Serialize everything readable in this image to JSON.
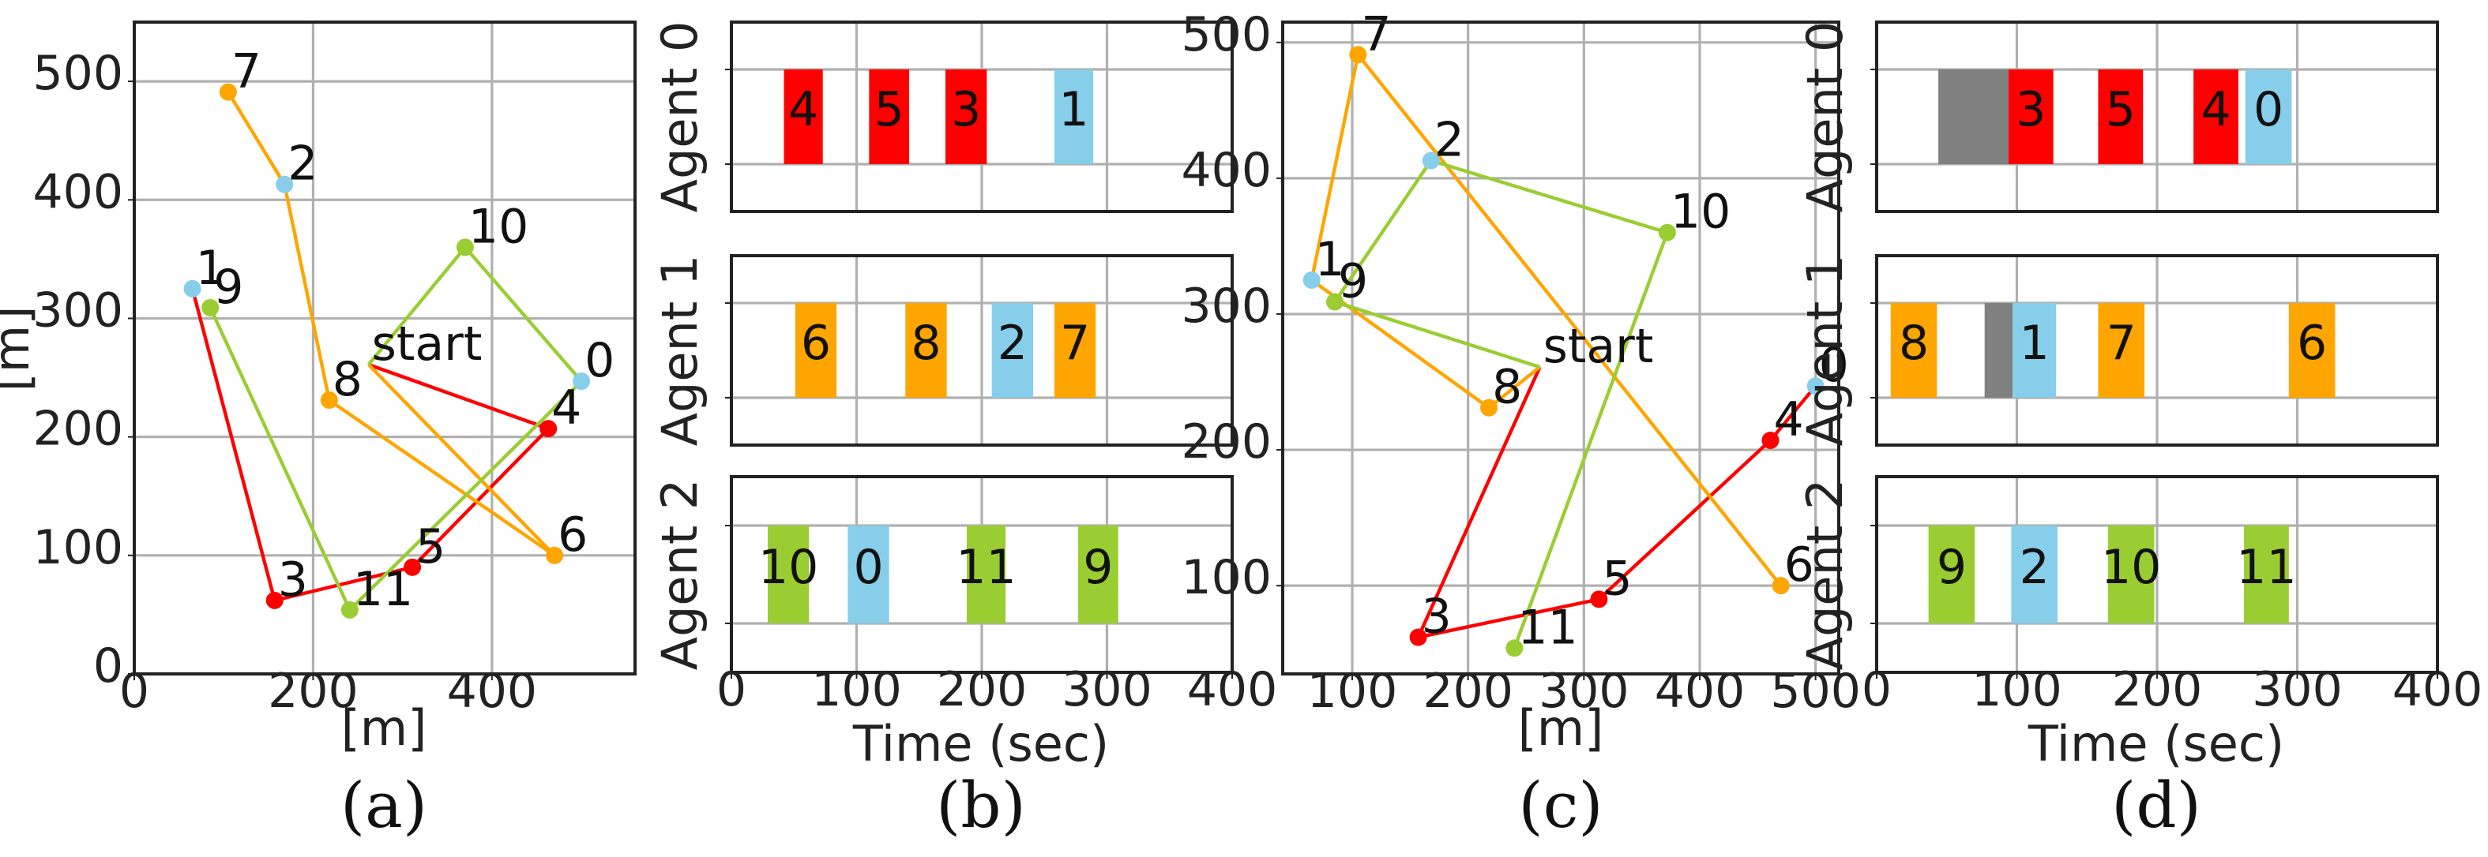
{
  "colors": {
    "agent0": "#ff0000",
    "agent1": "#ffa500",
    "agent2": "#9acd32",
    "depot": "#87ceeb",
    "wait": "#808080"
  },
  "chart_data": [
    {
      "id": "a",
      "type": "scatter",
      "caption": "(a)",
      "xlabel": "[m]",
      "ylabel": "[m]",
      "xlim": [
        0,
        560
      ],
      "ylim": [
        0,
        550
      ],
      "xticks": [
        0,
        200,
        400
      ],
      "yticks": [
        0,
        100,
        200,
        300,
        400,
        500
      ],
      "grid": true,
      "points": [
        {
          "label": "0",
          "x": 500,
          "y": 247,
          "color": "depot"
        },
        {
          "label": "1",
          "x": 65,
          "y": 325,
          "color": "depot"
        },
        {
          "label": "2",
          "x": 168,
          "y": 413,
          "color": "depot"
        },
        {
          "label": "3",
          "x": 157,
          "y": 62,
          "color": "agent0"
        },
        {
          "label": "4",
          "x": 463,
          "y": 207,
          "color": "agent0"
        },
        {
          "label": "5",
          "x": 311,
          "y": 90,
          "color": "agent0"
        },
        {
          "label": "6",
          "x": 470,
          "y": 100,
          "color": "agent1"
        },
        {
          "label": "7",
          "x": 105,
          "y": 491,
          "color": "agent1"
        },
        {
          "label": "8",
          "x": 218,
          "y": 231,
          "color": "agent1"
        },
        {
          "label": "9",
          "x": 85,
          "y": 309,
          "color": "agent2"
        },
        {
          "label": "10",
          "x": 370,
          "y": 360,
          "color": "agent2"
        },
        {
          "label": "11",
          "x": 241,
          "y": 54,
          "color": "agent2"
        },
        {
          "label": "start",
          "x": 262,
          "y": 261,
          "color": "agent2"
        }
      ],
      "routes": [
        {
          "color": "agent0",
          "path": [
            "start",
            "4",
            "5",
            "3",
            "1"
          ]
        },
        {
          "color": "agent1",
          "path": [
            "start",
            "6",
            "8",
            "2",
            "7"
          ]
        },
        {
          "color": "agent2",
          "path": [
            "start",
            "10",
            "0",
            "11",
            "9"
          ]
        }
      ]
    },
    {
      "id": "b",
      "type": "bar",
      "caption": "(b)",
      "xlabel": "Time (sec)",
      "xlim": [
        0,
        400
      ],
      "xticks": [
        0,
        100,
        200,
        300,
        400
      ],
      "grid": true,
      "agents": [
        {
          "name": "Agent 0",
          "tasks": [
            {
              "label": "4",
              "start": 42,
              "end": 73,
              "color": "agent0"
            },
            {
              "label": "5",
              "start": 110,
              "end": 142,
              "color": "agent0"
            },
            {
              "label": "3",
              "start": 171,
              "end": 204,
              "color": "agent0"
            },
            {
              "label": "1",
              "start": 258,
              "end": 289,
              "color": "depot"
            }
          ]
        },
        {
          "name": "Agent 1",
          "tasks": [
            {
              "label": "6",
              "start": 51,
              "end": 84,
              "color": "agent1"
            },
            {
              "label": "8",
              "start": 139,
              "end": 172,
              "color": "agent1"
            },
            {
              "label": "2",
              "start": 208,
              "end": 241,
              "color": "depot"
            },
            {
              "label": "7",
              "start": 258,
              "end": 291,
              "color": "agent1"
            }
          ]
        },
        {
          "name": "Agent 2",
          "tasks": [
            {
              "label": "10",
              "start": 29,
              "end": 62,
              "color": "agent2"
            },
            {
              "label": "0",
              "start": 93,
              "end": 126,
              "color": "depot"
            },
            {
              "label": "11",
              "start": 188,
              "end": 219,
              "color": "agent2"
            },
            {
              "label": "9",
              "start": 277,
              "end": 309,
              "color": "agent2"
            }
          ]
        }
      ]
    },
    {
      "id": "c",
      "type": "scatter",
      "caption": "(c)",
      "xlabel": "[m]",
      "ylabel": "",
      "xlim": [
        40,
        520
      ],
      "ylim": [
        35,
        515
      ],
      "xticks": [
        100,
        200,
        300,
        400,
        500
      ],
      "yticks": [
        100,
        200,
        300,
        400,
        500
      ],
      "grid": true,
      "points": [
        {
          "label": "0",
          "x": 500,
          "y": 247,
          "color": "depot"
        },
        {
          "label": "1",
          "x": 65,
          "y": 325,
          "color": "depot"
        },
        {
          "label": "2",
          "x": 168,
          "y": 413,
          "color": "depot"
        },
        {
          "label": "3",
          "x": 157,
          "y": 62,
          "color": "agent0"
        },
        {
          "label": "4",
          "x": 461,
          "y": 207,
          "color": "agent0"
        },
        {
          "label": "5",
          "x": 313,
          "y": 90,
          "color": "agent0"
        },
        {
          "label": "6",
          "x": 470,
          "y": 100,
          "color": "agent1"
        },
        {
          "label": "7",
          "x": 105,
          "y": 491,
          "color": "agent1"
        },
        {
          "label": "8",
          "x": 218,
          "y": 231,
          "color": "agent1"
        },
        {
          "label": "9",
          "x": 85,
          "y": 309,
          "color": "agent2"
        },
        {
          "label": "10",
          "x": 372,
          "y": 360,
          "color": "agent2"
        },
        {
          "label": "11",
          "x": 240,
          "y": 54,
          "color": "agent2"
        },
        {
          "label": "start",
          "x": 262,
          "y": 261,
          "color": "agent2"
        }
      ],
      "routes": [
        {
          "color": "agent0",
          "path": [
            "start",
            "3",
            "5",
            "4",
            "0"
          ]
        },
        {
          "color": "agent1",
          "path": [
            "start",
            "8",
            "1",
            "7",
            "6"
          ]
        },
        {
          "color": "agent2",
          "path": [
            "start",
            "9",
            "2",
            "10",
            "11"
          ]
        }
      ]
    },
    {
      "id": "d",
      "type": "bar",
      "caption": "(d)",
      "xlabel": "Time (sec)",
      "xlim": [
        0,
        400
      ],
      "xticks": [
        0,
        100,
        200,
        300,
        400
      ],
      "grid": true,
      "agents": [
        {
          "name": "Agent 0",
          "tasks": [
            {
              "label": "",
              "start": 44,
              "end": 94,
              "color": "wait"
            },
            {
              "label": "3",
              "start": 94,
              "end": 126,
              "color": "agent0"
            },
            {
              "label": "5",
              "start": 158,
              "end": 190,
              "color": "agent0"
            },
            {
              "label": "4",
              "start": 226,
              "end": 258,
              "color": "agent0"
            },
            {
              "label": "0",
              "start": 263,
              "end": 296,
              "color": "depot"
            }
          ]
        },
        {
          "name": "Agent 1",
          "tasks": [
            {
              "label": "8",
              "start": 10,
              "end": 43,
              "color": "agent1"
            },
            {
              "label": "",
              "start": 77,
              "end": 97,
              "color": "wait"
            },
            {
              "label": "1",
              "start": 97,
              "end": 128,
              "color": "depot"
            },
            {
              "label": "7",
              "start": 158,
              "end": 191,
              "color": "agent1"
            },
            {
              "label": "6",
              "start": 294,
              "end": 327,
              "color": "agent1"
            }
          ]
        },
        {
          "name": "Agent 2",
          "tasks": [
            {
              "label": "9",
              "start": 37,
              "end": 70,
              "color": "agent2"
            },
            {
              "label": "2",
              "start": 96,
              "end": 129,
              "color": "depot"
            },
            {
              "label": "10",
              "start": 165,
              "end": 198,
              "color": "agent2"
            },
            {
              "label": "11",
              "start": 262,
              "end": 294,
              "color": "agent2"
            }
          ]
        }
      ]
    }
  ]
}
